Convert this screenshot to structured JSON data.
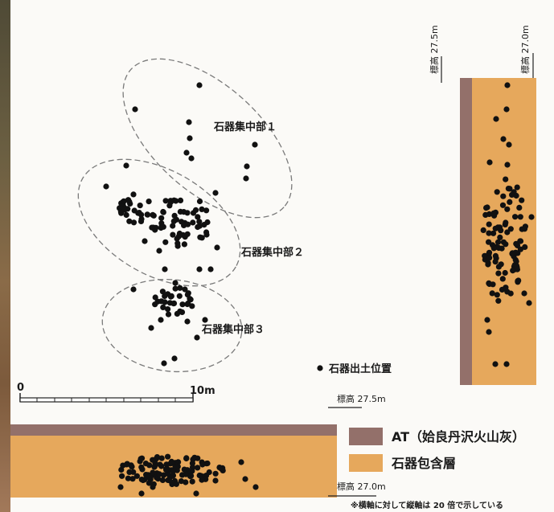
{
  "clusters": [
    "石器集中部１",
    "石器集中部２",
    "石器集中部３"
  ],
  "legend_marker": "石器出土位置",
  "scale": {
    "start": "0",
    "end": "10m"
  },
  "elevations": {
    "upper": "標高 27.5m",
    "lower": "標高 27.0m"
  },
  "legend": [
    {
      "label": "AT（姶良丹沢火山灰）",
      "color": "#93706a"
    },
    {
      "label": "石器包含層",
      "color": "#e6a85c"
    }
  ],
  "note": "※横軸に対して縦軸は 20 倍で示している",
  "colors": {
    "layer": "#e6a85c",
    "at": "#93706a",
    "dot": "#111111"
  }
}
